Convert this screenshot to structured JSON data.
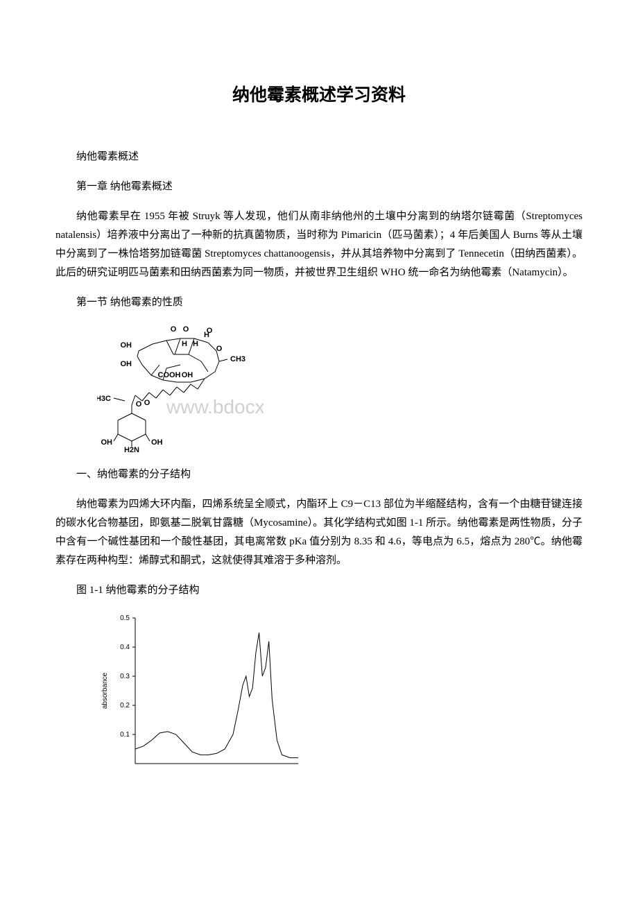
{
  "title": "纳他霉素概述学习资料",
  "p1": "纳他霉素概述",
  "p2": "第一章 纳他霉素概述",
  "p3": "纳他霉素早在 1955 年被 Struyk 等人发现，他们从南非纳他州的土壤中分离到的纳塔尔链霉菌（Streptomyces natalensis）培养液中分离出了一种新的抗真菌物质，当时称为 Pimaricin（匹马菌素）；4 年后美国人 Burns 等从土壤中分离到了一株恰塔努加链霉菌 Streptomyces chattanoogensis，并从其培养物中分离到了 Tennecetin（田纳西菌素）。此后的研究证明匹马菌素和田纳西菌素为同一物质，并被世界卫生组织 WHO 统一命名为纳他霉素（Natamycin）。",
  "p4": "第一节 纳他霉素的性质",
  "p5": "一、纳他霉素的分子结构",
  "p6": "纳他霉素为四烯大环内酯，四烯系统呈全顺式，内酯环上 C9－C13 部位为半缩醛结构，含有一个由糖苷键连接的碳水化合物基团，即氨基二脱氧甘露糖（Mycosamine）。其化学结构式如图 1-1 所示。纳他霉素是两性物质，分子中含有一个碱性基团和一个酸性基团，其电离常数 pKa 值分别为 8.35 和 4.6，等电点为 6.5，熔点为 280℃。纳他霉素存在两种构型：烯醇式和酮式，这就使得其难溶于多种溶剂。",
  "p7": "图 1-1 纳他霉素的分子结构",
  "watermark": "www.bdocx.com",
  "molecule": {
    "labels": {
      "oh1": "OH",
      "oh2": "OH",
      "oh3": "OH",
      "oh4": "OH",
      "oh5": "OH",
      "o1": "O",
      "o2": "O",
      "o3": "O",
      "o4": "O",
      "h1": "H",
      "h2": "H",
      "h3": "H",
      "ch3": "CH3",
      "h3c": "H3C",
      "cooh": "COOH",
      "h2n": "H2N"
    },
    "stroke": "#000000",
    "stroke_width": 1,
    "font_size": 11
  },
  "spectrum": {
    "type": "line",
    "ylabel": "absorbance",
    "label_fontsize": 10,
    "tick_fontsize": 10,
    "ylim": [
      0.0,
      0.5
    ],
    "yticks": [
      0.1,
      0.2,
      0.3,
      0.4,
      0.5
    ],
    "x_range": [
      0,
      100
    ],
    "line_color": "#000000",
    "line_width": 1,
    "axis_color": "#000000",
    "background_color": "#ffffff",
    "points": [
      [
        0,
        0.05
      ],
      [
        5,
        0.06
      ],
      [
        10,
        0.08
      ],
      [
        15,
        0.105
      ],
      [
        20,
        0.11
      ],
      [
        25,
        0.1
      ],
      [
        30,
        0.07
      ],
      [
        35,
        0.04
      ],
      [
        40,
        0.03
      ],
      [
        45,
        0.03
      ],
      [
        50,
        0.035
      ],
      [
        55,
        0.05
      ],
      [
        60,
        0.1
      ],
      [
        63,
        0.18
      ],
      [
        66,
        0.27
      ],
      [
        68,
        0.3
      ],
      [
        70,
        0.23
      ],
      [
        72,
        0.26
      ],
      [
        74,
        0.38
      ],
      [
        76,
        0.45
      ],
      [
        78,
        0.3
      ],
      [
        80,
        0.33
      ],
      [
        82,
        0.42
      ],
      [
        84,
        0.22
      ],
      [
        87,
        0.08
      ],
      [
        90,
        0.03
      ],
      [
        95,
        0.02
      ],
      [
        100,
        0.02
      ]
    ]
  }
}
